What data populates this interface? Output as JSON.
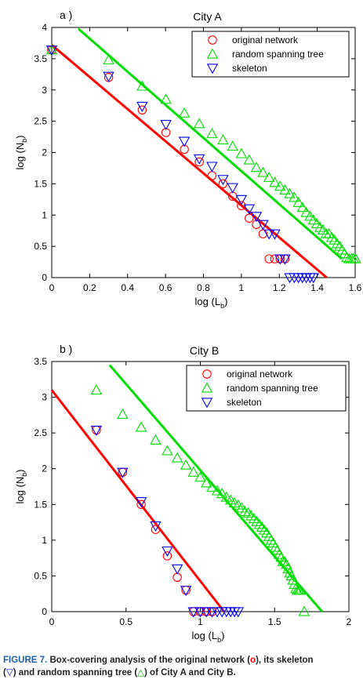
{
  "chart_data": [
    {
      "type": "scatter",
      "panel_label": "a )",
      "title": "City A",
      "xlabel": "log (L",
      "xlabel_sub": "b",
      "ylabel": "log (N",
      "ylabel_sub": "b",
      "xlim": [
        0,
        1.6
      ],
      "ylim": [
        0,
        4
      ],
      "xticks": [
        0,
        0.2,
        0.4,
        0.6,
        0.8,
        1,
        1.2,
        1.4,
        1.6
      ],
      "xtick_labels": [
        "0",
        "0.2",
        "0.4",
        "0.6",
        "0.8",
        "1",
        "1.2",
        "1.4",
        "1.6"
      ],
      "yticks": [
        0,
        0.5,
        1,
        1.5,
        2,
        2.5,
        3,
        3.5,
        4
      ],
      "ytick_labels": [
        "0",
        "0.5",
        "1",
        "1.5",
        "2",
        "2.5",
        "3",
        "3.5",
        "4"
      ],
      "legend_position": "top-right",
      "series": [
        {
          "name": "original network",
          "marker": "circle",
          "color": "#ff0000",
          "x": [
            0,
            0.3,
            0.477,
            0.602,
            0.699,
            0.778,
            0.845,
            0.903,
            0.954,
            1.0,
            1.041,
            1.079,
            1.114,
            1.146,
            1.176,
            1.204,
            1.23
          ],
          "y": [
            3.64,
            3.2,
            2.68,
            2.32,
            2.05,
            1.85,
            1.63,
            1.5,
            1.3,
            1.15,
            0.95,
            0.85,
            0.7,
            0.3,
            0.3,
            0.3,
            0.3
          ]
        },
        {
          "name": "random spanning tree",
          "marker": "triangle-up",
          "color": "#00dd00",
          "x": [
            0,
            0.3,
            0.477,
            0.602,
            0.699,
            0.778,
            0.845,
            0.903,
            0.954,
            1.0,
            1.041,
            1.079,
            1.114,
            1.146,
            1.176,
            1.204,
            1.23,
            1.255,
            1.279,
            1.301,
            1.322,
            1.342,
            1.362,
            1.38,
            1.398,
            1.415,
            1.431,
            1.447,
            1.462,
            1.477,
            1.491,
            1.505,
            1.519,
            1.531,
            1.544,
            1.556,
            1.568,
            1.58,
            1.591,
            1.602
          ],
          "y": [
            3.64,
            3.48,
            3.06,
            2.85,
            2.63,
            2.46,
            2.3,
            2.2,
            2.1,
            1.98,
            1.88,
            1.76,
            1.68,
            1.6,
            1.52,
            1.46,
            1.4,
            1.34,
            1.28,
            1.2,
            1.12,
            1.04,
            0.98,
            0.92,
            0.86,
            0.8,
            0.76,
            0.7,
            0.7,
            0.64,
            0.6,
            0.54,
            0.5,
            0.44,
            0.38,
            0.32,
            0.3,
            0.3,
            0.3,
            0.3
          ]
        },
        {
          "name": "skeleton",
          "marker": "triangle-down",
          "color": "#0000ff",
          "x": [
            0,
            0.3,
            0.477,
            0.602,
            0.699,
            0.778,
            0.845,
            0.903,
            0.954,
            1.0,
            1.041,
            1.079,
            1.114,
            1.146,
            1.176,
            1.204,
            1.23,
            1.255,
            1.279,
            1.301,
            1.322,
            1.342,
            1.362,
            1.38
          ],
          "y": [
            3.64,
            3.22,
            2.74,
            2.45,
            2.18,
            1.9,
            1.78,
            1.57,
            1.44,
            1.25,
            1.1,
            0.98,
            0.85,
            0.7,
            0.7,
            0.3,
            0.3,
            0,
            0,
            0,
            0,
            0,
            0,
            0
          ]
        }
      ],
      "fit_lines": [
        {
          "color": "#ff0000",
          "x": [
            0,
            1.45
          ],
          "y": [
            3.72,
            0
          ]
        },
        {
          "color": "#00dd00",
          "x": [
            0.14,
            1.53
          ],
          "y": [
            3.98,
            0.3
          ]
        }
      ]
    },
    {
      "type": "scatter",
      "panel_label": "b )",
      "title": "City B",
      "xlabel": "log (L",
      "xlabel_sub": "b",
      "ylabel": "log (N",
      "ylabel_sub": "b",
      "xlim": [
        0,
        2
      ],
      "ylim": [
        0,
        3.5
      ],
      "xticks": [
        0,
        0.5,
        1,
        1.5,
        2
      ],
      "xtick_labels": [
        "0",
        "0.5",
        "1",
        "1.5",
        "2"
      ],
      "yticks": [
        0,
        0.5,
        1,
        1.5,
        2,
        2.5,
        3,
        3.5
      ],
      "ytick_labels": [
        "0",
        "0.5",
        "1",
        "1.5",
        "2",
        "2.5",
        "3",
        "3.5"
      ],
      "legend_position": "top-right",
      "series": [
        {
          "name": "original network",
          "marker": "circle",
          "color": "#ff0000",
          "x": [
            0.3,
            0.477,
            0.602,
            0.699,
            0.778,
            0.845,
            0.903,
            0.954,
            1.0,
            1.041,
            1.079
          ],
          "y": [
            2.54,
            1.95,
            1.5,
            1.15,
            0.78,
            0.48,
            0.3,
            0,
            0,
            0,
            0
          ]
        },
        {
          "name": "random spanning tree",
          "marker": "triangle-up",
          "color": "#00dd00",
          "x": [
            0.3,
            0.477,
            0.602,
            0.699,
            0.778,
            0.845,
            0.903,
            0.954,
            1.0,
            1.041,
            1.079,
            1.114,
            1.146,
            1.176,
            1.204,
            1.23,
            1.255,
            1.279,
            1.301,
            1.322,
            1.342,
            1.362,
            1.38,
            1.398,
            1.415,
            1.431,
            1.447,
            1.462,
            1.477,
            1.491,
            1.505,
            1.519,
            1.531,
            1.544,
            1.556,
            1.568,
            1.58,
            1.591,
            1.602,
            1.613,
            1.623,
            1.633,
            1.643,
            1.653,
            1.663,
            1.672,
            1.699
          ],
          "y": [
            3.1,
            2.76,
            2.58,
            2.4,
            2.25,
            2.15,
            2.05,
            1.95,
            1.88,
            1.8,
            1.74,
            1.69,
            1.65,
            1.6,
            1.56,
            1.52,
            1.49,
            1.45,
            1.4,
            1.38,
            1.34,
            1.3,
            1.26,
            1.22,
            1.18,
            1.14,
            1.1,
            1.05,
            1.0,
            0.96,
            0.9,
            0.86,
            0.8,
            0.76,
            0.7,
            0.7,
            0.66,
            0.6,
            0.54,
            0.5,
            0.44,
            0.38,
            0.32,
            0.3,
            0.3,
            0.3,
            0
          ]
        },
        {
          "name": "skeleton",
          "marker": "triangle-down",
          "color": "#0000ff",
          "x": [
            0.3,
            0.477,
            0.602,
            0.699,
            0.778,
            0.845,
            0.903,
            0.954,
            1.0,
            1.041,
            1.079,
            1.114,
            1.146,
            1.176,
            1.204,
            1.23,
            1.255
          ],
          "y": [
            2.54,
            1.95,
            1.54,
            1.2,
            0.85,
            0.6,
            0.3,
            0,
            0,
            0,
            0,
            0,
            0,
            0,
            0,
            0,
            0
          ]
        }
      ],
      "fit_lines": [
        {
          "color": "#ff0000",
          "x": [
            0,
            1.16
          ],
          "y": [
            3.1,
            0
          ]
        },
        {
          "color": "#00dd00",
          "x": [
            0.39,
            1.82
          ],
          "y": [
            3.45,
            0
          ]
        }
      ]
    }
  ],
  "caption": {
    "lead": "FIGURE 7.",
    "text_before_o": "Box-covering analysis of the original network (",
    "o_symbol": "o",
    "text_after_o": "), its skeleton",
    "skel_open": "(",
    "skel_symbol": "▽",
    "text_after_skel": ") and random spanning tree (",
    "rst_symbol": "△",
    "text_end": ") of City A and City B.",
    "o_color": "#ff0000",
    "skel_color": "#0000ff",
    "rst_color": "#00aa00"
  }
}
